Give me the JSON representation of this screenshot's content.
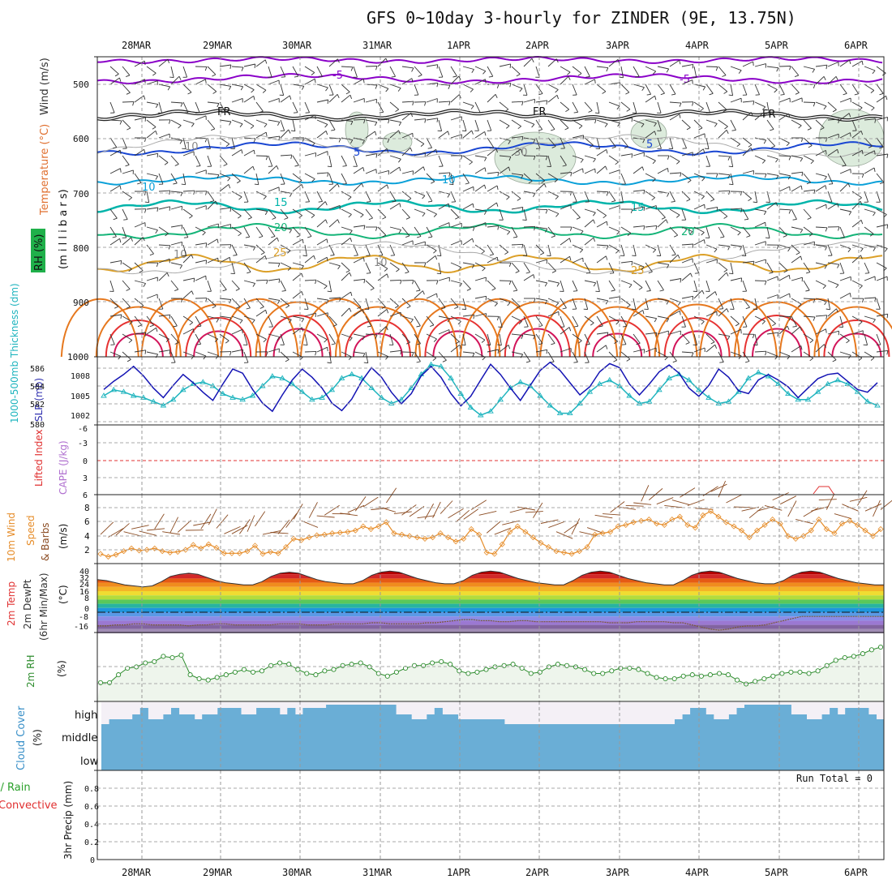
{
  "title": "GFS 0~10day 3-hourly for ZINDER (9E, 13.75N)",
  "dates": [
    "28MAR",
    "29MAR",
    "30MAR",
    "31MAR",
    "1APR",
    "2APR",
    "3APR",
    "4APR",
    "5APR",
    "6APR"
  ],
  "colors": {
    "purple": "#8a00c8",
    "blue": "#1946d2",
    "cyan": "#0aa0d8",
    "teal": "#00b4aa",
    "green": "#14b478",
    "gold": "#dca028",
    "orange": "#e6781e",
    "red": "#e63232",
    "magenta": "#d2145a",
    "slp": "#1414b4",
    "thick": "#1eb4be",
    "wind": "#e68c28",
    "rh": "#2d8c2d",
    "cloud": "#6aaed6"
  },
  "panels": {
    "profile": {
      "label_wind": "Wind (m/s)",
      "label_temp": "Temperature (°C)",
      "label_rh": "RH (%)",
      "label_mb": "(m i l l i b a r s)",
      "y_ticks": [
        "500",
        "600",
        "700",
        "800",
        "900",
        "1000"
      ]
    },
    "slp": {
      "label_thick": "1000-500mb Thickness (dm)",
      "label_slp": "SLP (mb)",
      "thick_ticks": [
        "586",
        "584",
        "582",
        "580"
      ],
      "slp_ticks": [
        "1008",
        "1005",
        "1002"
      ]
    },
    "li": {
      "label_li": "Lifted Index",
      "label_cape": "CAPE (J/kg)",
      "ticks": [
        "-6",
        "-3",
        "0",
        "3",
        "6"
      ]
    },
    "wind10": {
      "label_a": "10m Wind",
      "label_b": "Speed",
      "label_c": "& Barbs",
      "unit": "(m/s)",
      "ticks": [
        "8",
        "6",
        "4",
        "2"
      ]
    },
    "temp2m": {
      "label_a": "2m Temp",
      "label_b": "2m DewPt",
      "label_c": "(6hr Min/Max)",
      "unit": "(°C)",
      "ticks": [
        "40",
        "32",
        "24",
        "16",
        "8",
        "0",
        "-8",
        "-16"
      ]
    },
    "rh2m": {
      "label": "2m RH",
      "unit": "(%)"
    },
    "cloud": {
      "label": "Cloud Cover",
      "unit": "(%)",
      "ticks": [
        "high",
        "middle",
        "low"
      ]
    },
    "precip": {
      "label_total": "Total / Rain",
      "label_conv": "Convective",
      "label_axis": "3hr Precip (mm)",
      "run_total": "Run Total = 0",
      "ticks": [
        "0.8",
        "0.6",
        "0.4",
        "0.2",
        "0"
      ]
    }
  },
  "chart_data": [
    {
      "type": "line",
      "title": "Temperature / Wind profile",
      "y_axis": "pressure (mb)",
      "ylim": [
        1000,
        450
      ],
      "contour_labels": [
        "-5",
        "-5",
        "FR",
        "FR",
        "FR",
        "-5",
        "5",
        "10",
        "10",
        "15",
        "15",
        "20",
        "20",
        "25",
        "25",
        "10",
        "10",
        "10",
        "30"
      ]
    },
    {
      "type": "line",
      "series": [
        {
          "name": "SLP (mb)",
          "ylim": [
            1000,
            1010
          ],
          "values": [
            1005.2,
            1006.4,
            1007.4,
            1008.6,
            1007.2,
            1005.4,
            1004.0,
            1005.8,
            1007.4,
            1006.2,
            1004.8,
            1003.6,
            1006.0,
            1008.2,
            1007.6,
            1005.2,
            1003.2,
            1002.0,
            1004.4,
            1006.6,
            1008.2,
            1007.0,
            1005.4,
            1003.2,
            1002.1,
            1003.8,
            1006.4,
            1008.4,
            1007.0,
            1004.8,
            1003.1,
            1004.6,
            1007.2,
            1008.6,
            1007.0,
            1004.6,
            1002.8,
            1004.2,
            1006.6,
            1008.9,
            1007.4,
            1005.4,
            1003.6,
            1005.8,
            1008.0,
            1009.2,
            1008.0,
            1006.2,
            1004.4,
            1005.6,
            1007.8,
            1009.0,
            1008.4,
            1006.0,
            1004.4,
            1006.0,
            1007.8,
            1008.8,
            1007.6,
            1005.4,
            1004.2,
            1005.8,
            1008.2,
            1007.0,
            1005.0,
            1004.6,
            1006.6,
            1007.4,
            1006.6,
            1005.6,
            1004.0,
            1005.4,
            1006.8,
            1007.4,
            1007.6,
            1006.4,
            1005.2,
            1004.8,
            1006.2
          ]
        },
        {
          "name": "1000-500mb Thickness (dm)",
          "ylim": [
            580,
            587
          ],
          "values": [
            583.0,
            583.6,
            583.4,
            583.0,
            582.8,
            582.4,
            582.0,
            582.6,
            583.6,
            584.2,
            584.4,
            584.0,
            583.2,
            582.8,
            582.6,
            583.0,
            584.0,
            585.0,
            584.8,
            584.2,
            583.4,
            582.6,
            582.8,
            583.6,
            584.8,
            585.2,
            584.8,
            583.8,
            582.8,
            582.2,
            582.6,
            583.8,
            585.2,
            586.2,
            586.0,
            584.8,
            583.2,
            581.8,
            581.0,
            581.4,
            582.6,
            583.8,
            584.4,
            584.0,
            583.0,
            582.0,
            581.2,
            581.2,
            582.2,
            583.4,
            584.2,
            584.6,
            584.0,
            583.0,
            582.2,
            582.4,
            583.6,
            584.8,
            585.2,
            584.6,
            583.6,
            582.8,
            582.2,
            582.4,
            583.4,
            584.8,
            585.4,
            585.0,
            584.2,
            583.2,
            582.6,
            582.6,
            583.4,
            584.2,
            584.6,
            584.2,
            583.4,
            582.4,
            582.0
          ]
        }
      ]
    },
    {
      "type": "line",
      "series": [
        {
          "name": "Lifted Index",
          "values": []
        }
      ],
      "ylim": [
        6,
        -6
      ]
    },
    {
      "type": "line",
      "series": [
        {
          "name": "10m Wind Speed",
          "values": [
            1.4,
            1.0,
            1.3,
            1.8,
            2.2,
            1.9,
            2.0,
            2.2,
            1.8,
            1.6,
            1.7,
            2.0,
            2.7,
            2.2,
            2.8,
            2.3,
            1.5,
            1.5,
            1.5,
            1.8,
            2.6,
            1.4,
            1.7,
            1.5,
            2.4,
            3.6,
            3.4,
            3.8,
            4.1,
            4.2,
            4.4,
            4.5,
            4.6,
            4.8,
            5.4,
            5.0,
            5.4,
            6.0,
            4.4,
            4.2,
            4.0,
            3.8,
            3.6,
            3.8,
            4.4,
            3.8,
            3.2,
            3.6,
            5.0,
            4.2,
            1.6,
            1.4,
            2.8,
            4.6,
            5.4,
            4.6,
            3.8,
            3.0,
            2.4,
            1.8,
            1.6,
            1.4,
            1.8,
            2.4,
            4.2,
            4.4,
            4.6,
            5.4,
            5.6,
            6.0,
            6.2,
            6.4,
            5.8,
            5.6,
            6.4,
            6.8,
            5.6,
            5.2,
            7.0
          ]
        },
        {
          "name": "10m Wind Speed (cont.)",
          "values": [
            7.6,
            6.8,
            6.0,
            5.4,
            4.8,
            3.8,
            4.8,
            5.6,
            6.4,
            5.8,
            4.0,
            3.6,
            4.0,
            4.8,
            6.4,
            5.0,
            4.4,
            5.8,
            6.2,
            5.6,
            4.8,
            4.0,
            5.0
          ]
        }
      ],
      "ylim": [
        0,
        10
      ]
    },
    {
      "type": "area",
      "series": [
        {
          "name": "2m Temp",
          "values": [
            31,
            30,
            28,
            26,
            25,
            24,
            25,
            29,
            34,
            36,
            37,
            36,
            33,
            30,
            28,
            27,
            26,
            26,
            29,
            34,
            37,
            38,
            37,
            34,
            31,
            29,
            28,
            27,
            27,
            30,
            35,
            38,
            39,
            38,
            35,
            32,
            30,
            28,
            27,
            27,
            30,
            35,
            38,
            39,
            38,
            35,
            32,
            30,
            28,
            27,
            26,
            26,
            30,
            35,
            38,
            39,
            38,
            35,
            32,
            30,
            28,
            27,
            26,
            26,
            30,
            35,
            38,
            39,
            38,
            35,
            32,
            30,
            28,
            27,
            27,
            30,
            35,
            38,
            39,
            38,
            35,
            32,
            30,
            28,
            27,
            26,
            26
          ]
        },
        {
          "name": "2m DewPt",
          "values": [
            -13,
            -13,
            -12,
            -12,
            -11,
            -11,
            -12,
            -12,
            -12,
            -12,
            -13,
            -12,
            -12,
            -11,
            -11,
            -12,
            -12,
            -12,
            -12,
            -12,
            -11,
            -11,
            -11,
            -12,
            -12,
            -12,
            -11,
            -11,
            -11,
            -11,
            -10,
            -10,
            -11,
            -11,
            -11,
            -11,
            -10,
            -10,
            -9,
            -8,
            -7,
            -7,
            -8,
            -8,
            -9,
            -9,
            -8,
            -8,
            -9,
            -9,
            -9,
            -9,
            -9,
            -9,
            -9,
            -9,
            -10,
            -10,
            -10,
            -9,
            -9,
            -9,
            -9,
            -10,
            -10,
            -12,
            -14,
            -16,
            -17,
            -16,
            -14,
            -13,
            -13,
            -12,
            -10,
            -8,
            -6,
            -4,
            -4,
            -4,
            -4,
            -4,
            -4,
            -4,
            -4,
            -4,
            -4
          ]
        }
      ],
      "ylim": [
        -20,
        44
      ]
    },
    {
      "type": "area",
      "series": [
        {
          "name": "2m RH (%)",
          "values": [
            5,
            5,
            11,
            16,
            17,
            20,
            21,
            25,
            24,
            26,
            11,
            8,
            7,
            9,
            11,
            13,
            15,
            13,
            14,
            18,
            20,
            19,
            15,
            12,
            11,
            14,
            15,
            18,
            19,
            20,
            17,
            12,
            10,
            13,
            16,
            18,
            18,
            20,
            21,
            19,
            14,
            12,
            13,
            15,
            17,
            18,
            19,
            16,
            12,
            13,
            17,
            19,
            18,
            17,
            15,
            12,
            12,
            14,
            16,
            16,
            15,
            12,
            9,
            8,
            8,
            10,
            11,
            10,
            11,
            12,
            11,
            7,
            4,
            6,
            8,
            10,
            12,
            13,
            13,
            12,
            14,
            18,
            22,
            24,
            25,
            27,
            30,
            32
          ]
        }
      ],
      "ylim": [
        0,
        40
      ]
    },
    {
      "type": "bar",
      "title": "Cloud Cover",
      "categories": [
        "high",
        "middle",
        "low"
      ],
      "series": [
        {
          "name": "cloud",
          "values": [
            55,
            100,
            100
          ]
        }
      ],
      "ylim": [
        0,
        100
      ]
    },
    {
      "type": "bar",
      "title": "3hr Precip (mm)",
      "series": [
        {
          "name": "Total / Rain",
          "values": []
        },
        {
          "name": "Convective",
          "values": []
        }
      ],
      "ylim": [
        0,
        0.9
      ]
    }
  ]
}
